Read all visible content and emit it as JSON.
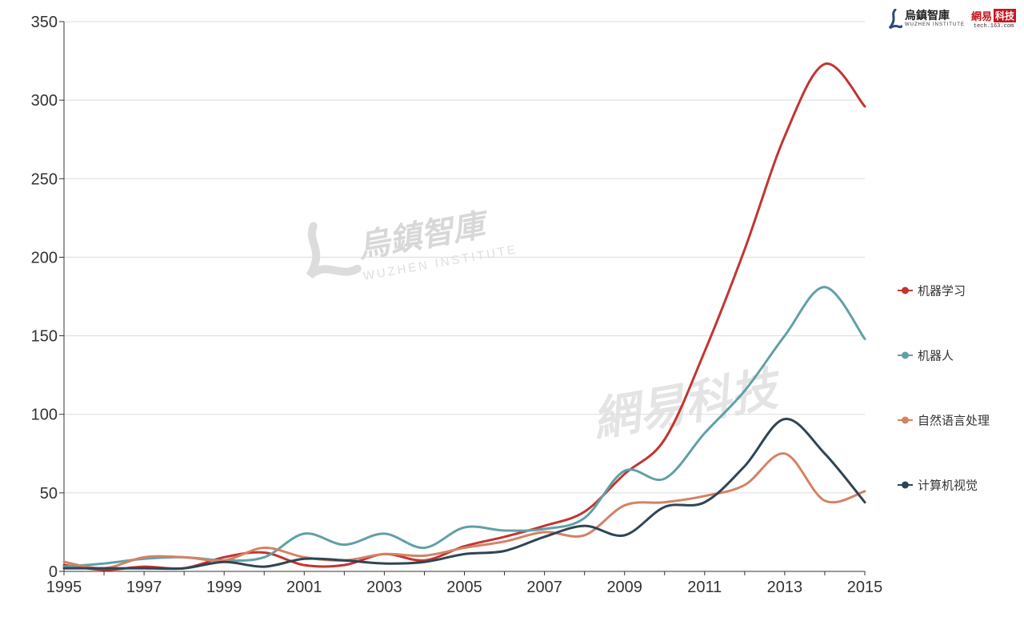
{
  "branding": {
    "logo_wuzhen_cn": "烏鎮智庫",
    "logo_wuzhen_en": "WUZHEN INSTITUTE",
    "logo_163_a": "網易",
    "logo_163_b": "科技",
    "logo_163_url": "tech.163.com",
    "watermark_wuzhen_cn": "烏鎮智庫",
    "watermark_wuzhen_en": "WUZHEN INSTITUTE",
    "watermark_163": "網易科技"
  },
  "chart_data": {
    "type": "line",
    "x": [
      1995,
      1996,
      1997,
      1998,
      1999,
      2000,
      2001,
      2002,
      2003,
      2004,
      2005,
      2006,
      2007,
      2008,
      2009,
      2010,
      2011,
      2012,
      2013,
      2014,
      2015
    ],
    "x_ticks": [
      "1995",
      "1997",
      "1999",
      "2001",
      "2003",
      "2005",
      "2007",
      "2009",
      "2011",
      "2013",
      "2015"
    ],
    "y_ticks": [
      "0",
      "50",
      "100",
      "150",
      "200",
      "250",
      "300",
      "350"
    ],
    "xlim": [
      1995,
      2015
    ],
    "ylim": [
      0,
      350
    ],
    "grid": "horizontal",
    "legend_position": "right",
    "series": [
      {
        "name": "机器学习",
        "color": "#c23531",
        "values": [
          4,
          1,
          3,
          2,
          9,
          12,
          4,
          4,
          11,
          7,
          16,
          22,
          29,
          38,
          62,
          84,
          140,
          205,
          277,
          323,
          296
        ]
      },
      {
        "name": "机器人",
        "color": "#61a0a8",
        "values": [
          3,
          5,
          8,
          9,
          7,
          9,
          24,
          17,
          24,
          15,
          28,
          26,
          27,
          34,
          64,
          59,
          88,
          115,
          150,
          181,
          148
        ]
      },
      {
        "name": "自然语言处理",
        "color": "#d48265",
        "values": [
          6,
          2,
          9,
          9,
          7,
          15,
          9,
          7,
          11,
          10,
          15,
          19,
          25,
          23,
          42,
          44,
          48,
          55,
          75,
          45,
          51
        ]
      },
      {
        "name": "计算机视觉",
        "color": "#2f4554",
        "values": [
          2,
          2,
          2,
          2,
          6,
          3,
          8,
          7,
          5,
          6,
          11,
          13,
          22,
          29,
          23,
          41,
          44,
          67,
          97,
          75,
          44
        ]
      }
    ]
  }
}
